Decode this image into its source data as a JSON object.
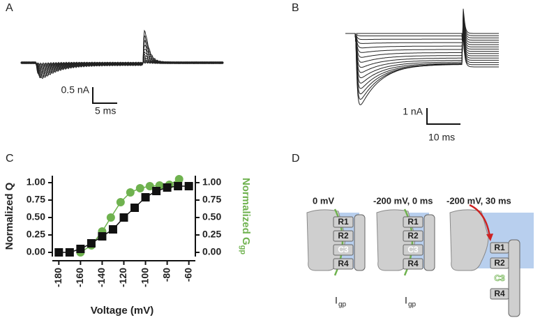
{
  "panels": {
    "a": {
      "label": "A",
      "y_scale": "0.5 nA",
      "x_scale": "5 ms"
    },
    "b": {
      "label": "B",
      "y_scale": "1 nA",
      "x_scale": "10 ms"
    },
    "c": {
      "label": "C"
    },
    "d": {
      "label": "D",
      "states": [
        {
          "title": "0 mV",
          "boxes": [
            "R1",
            "R2",
            "C3",
            "R4"
          ],
          "current": "I",
          "current_sub": "gp"
        },
        {
          "title": "-200 mV, 0 ms",
          "boxes": [
            "R1",
            "R2",
            "C3",
            "R4"
          ],
          "current": "I",
          "current_sub": "gp"
        },
        {
          "title": "-200 mV, 30 ms",
          "boxes": [
            "R1",
            "R2",
            "C3",
            "R4"
          ]
        }
      ]
    }
  },
  "chart_data": {
    "type": "scatter",
    "xlabel": "Voltage (mV)",
    "ylabel": "Normalized Q",
    "y2label": "Normalized G",
    "y2label_sub": "gp",
    "xlim": [
      -186,
      -54
    ],
    "xticks": [
      -180,
      -160,
      -140,
      -120,
      -100,
      -80,
      -60
    ],
    "ylim": [
      -0.06,
      1.1
    ],
    "yticks": [
      {
        "value": 0,
        "label": "0.00"
      },
      {
        "value": 0.25,
        "label": "0.25"
      },
      {
        "value": 0.5,
        "label": "0.50"
      },
      {
        "value": 0.75,
        "label": "0.75"
      },
      {
        "value": 1,
        "label": "1.00"
      }
    ],
    "y2lim": [
      -0.06,
      1.1
    ],
    "y2ticks": [
      {
        "value": 0,
        "label": "0.00"
      },
      {
        "value": 0.25,
        "label": "0.25"
      },
      {
        "value": 0.5,
        "label": "0.50"
      },
      {
        "value": 0.75,
        "label": "0.75"
      },
      {
        "value": 1,
        "label": "1.00"
      }
    ],
    "series": [
      {
        "color": "#6fb24f",
        "marker": "circle",
        "axis": "y2",
        "x": [
          -160,
          -150,
          -140,
          -132,
          -123,
          -114,
          -105,
          -96,
          -87,
          -78,
          -69
        ],
        "values": [
          0.0,
          0.1,
          0.3,
          0.5,
          0.72,
          0.86,
          0.92,
          0.95,
          0.96,
          0.97,
          1.05
        ]
      },
      {
        "color": "#111111",
        "marker": "square",
        "x": [
          -180,
          -170,
          -160,
          -150,
          -140,
          -130,
          -120,
          -110,
          -100,
          -90,
          -80,
          -70,
          -60
        ],
        "values": [
          0.0,
          0.0,
          0.05,
          0.13,
          0.23,
          0.33,
          0.5,
          0.64,
          0.79,
          0.88,
          0.93,
          0.95,
          0.95
        ]
      }
    ]
  }
}
